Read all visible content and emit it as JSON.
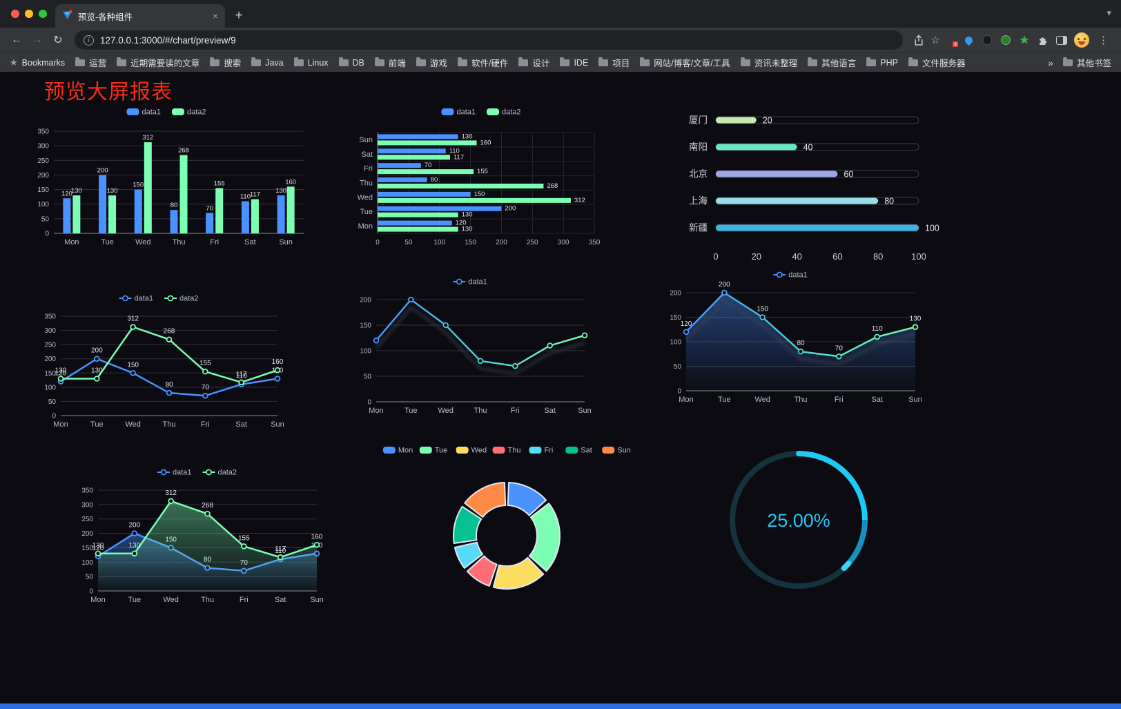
{
  "browser": {
    "tab": {
      "title": "预览-各种组件",
      "close": "×",
      "new_tab": "+",
      "tab_search": "▾"
    },
    "nav": {
      "back": "←",
      "forward": "→",
      "reload": "↻",
      "url": "127.0.0.1:3000/#/chart/preview/9",
      "info_icon": "i",
      "bookmark_star": "☆",
      "menu": "⋮",
      "extension_badge": "g"
    },
    "bookmarks_bar": {
      "star": "★",
      "label": "Bookmarks",
      "folders": [
        "运营",
        "近期需要读的文章",
        "搜索",
        "Java",
        "Linux",
        "DB",
        "前端",
        "游戏",
        "软件/硬件",
        "设计",
        "IDE",
        "项目",
        "网站/博客/文章/工具",
        "资讯未整理",
        "其他语言",
        "PHP",
        "文件服务器"
      ],
      "overflow": "»",
      "other_bookmarks": "其他书签"
    }
  },
  "page": {
    "title": "预览大屏报表",
    "title_color": "#fa2b16",
    "footer_color": "#2e6fdf"
  },
  "chart_data": [
    {
      "type": "bar",
      "title": "",
      "categories": [
        "Mon",
        "Tue",
        "Wed",
        "Thu",
        "Fri",
        "Sat",
        "Sun"
      ],
      "series": [
        {
          "name": "data1",
          "color": "#4992ff",
          "values": [
            120,
            200,
            150,
            80,
            70,
            110,
            130
          ]
        },
        {
          "name": "data2",
          "color": "#7cffb2",
          "values": [
            130,
            130,
            312,
            268,
            155,
            117,
            160
          ]
        }
      ],
      "ylim": [
        0,
        350
      ],
      "ytick_step": 50,
      "legend_position": "top"
    },
    {
      "type": "hbar",
      "categories": [
        "Mon",
        "Tue",
        "Wed",
        "Thu",
        "Fri",
        "Sat",
        "Sun"
      ],
      "series": [
        {
          "name": "data1",
          "color": "#4992ff",
          "values": [
            120,
            200,
            150,
            80,
            70,
            110,
            130
          ]
        },
        {
          "name": "data2",
          "color": "#7cffb2",
          "values": [
            130,
            130,
            312,
            268,
            155,
            117,
            160
          ]
        }
      ],
      "xlim": [
        0,
        350
      ],
      "xtick_step": 50,
      "legend_position": "top"
    },
    {
      "type": "progress",
      "categories": [
        "厦门",
        "南阳",
        "北京",
        "上海",
        "新疆"
      ],
      "values": [
        20,
        40,
        60,
        80,
        100
      ],
      "colors": [
        "#c4ebad",
        "#6be6c1",
        "#a0a7e6",
        "#96dee8",
        "#3fb1e3"
      ],
      "xlim": [
        0,
        100
      ],
      "xticks": [
        0,
        20,
        40,
        60,
        80,
        100
      ]
    },
    {
      "type": "line",
      "categories": [
        "Mon",
        "Tue",
        "Wed",
        "Thu",
        "Fri",
        "Sat",
        "Sun"
      ],
      "series": [
        {
          "name": "data1",
          "color": "#4992ff",
          "values": [
            120,
            200,
            150,
            80,
            70,
            110,
            130
          ]
        },
        {
          "name": "data2",
          "color": "#7cffb2",
          "values": [
            130,
            130,
            312,
            268,
            155,
            117,
            160
          ]
        }
      ],
      "ylim": [
        0,
        350
      ],
      "ytick_step": 50,
      "labels": true
    },
    {
      "type": "line",
      "categories": [
        "Mon",
        "Tue",
        "Wed",
        "Thu",
        "Fri",
        "Sat",
        "Sun"
      ],
      "series": [
        {
          "name": "data1",
          "color": "#4992ff",
          "gradient": true,
          "values": [
            120,
            200,
            150,
            80,
            70,
            110,
            130
          ]
        }
      ],
      "ylim": [
        0,
        200
      ],
      "ytick_step": 50,
      "labels": false,
      "shadow": true
    },
    {
      "type": "line",
      "categories": [
        "Mon",
        "Tue",
        "Wed",
        "Thu",
        "Fri",
        "Sat",
        "Sun"
      ],
      "series": [
        {
          "name": "data1",
          "color": "#4992ff",
          "gradient": true,
          "area": "#4992ff",
          "values": [
            120,
            200,
            150,
            80,
            70,
            110,
            130
          ]
        }
      ],
      "ylim": [
        0,
        200
      ],
      "ytick_step": 50,
      "labels": true,
      "shadow": true
    },
    {
      "type": "line",
      "categories": [
        "Mon",
        "Tue",
        "Wed",
        "Thu",
        "Fri",
        "Sat",
        "Sun"
      ],
      "series": [
        {
          "name": "data1",
          "color": "#4992ff",
          "area": "#4992ff",
          "values": [
            120,
            200,
            150,
            80,
            70,
            110,
            130
          ]
        },
        {
          "name": "data2",
          "color": "#7cffb2",
          "area": "#7cffb2",
          "values": [
            130,
            130,
            312,
            268,
            155,
            117,
            160
          ]
        }
      ],
      "ylim": [
        0,
        350
      ],
      "ytick_step": 50,
      "labels": true
    },
    {
      "type": "pie",
      "categories": [
        "Mon",
        "Tue",
        "Wed",
        "Thu",
        "Fri",
        "Sat",
        "Sun"
      ],
      "values": [
        120,
        200,
        150,
        80,
        70,
        110,
        130
      ],
      "colors": [
        "#4992ff",
        "#7cffb2",
        "#fddd60",
        "#ff6e76",
        "#58d9f9",
        "#05c091",
        "#ff8a45"
      ],
      "legend_position": "top"
    },
    {
      "type": "gauge",
      "value": 25,
      "label": "25.00%",
      "color": "#1fc9f5",
      "track_color": "#15333d"
    }
  ]
}
